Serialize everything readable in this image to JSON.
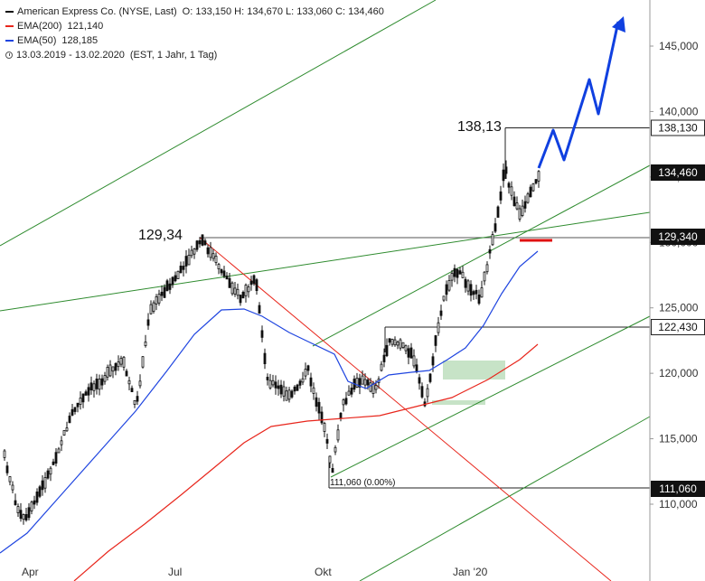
{
  "legend": {
    "title": "American Express Co. (NYSE, Last)",
    "ohlc": "O: 133,150  H: 134,670  L: 133,060  C: 134,460",
    "ema200_label": "EMA(200)",
    "ema200_value": "121,140",
    "ema50_label": "EMA(50)",
    "ema50_value": "128,185",
    "period": "13.03.2019 - 13.02.2020",
    "period_info": "(EST, 1 Jahr, 1 Tag)"
  },
  "colors": {
    "ema200": "#e8261c",
    "ema50": "#1f45e0",
    "green_lines": "#2e8b2e",
    "red_line": "#e8261c",
    "projection": "#1040e0",
    "support_mark": "#e01010",
    "zone_fill": "#b9dcb9",
    "candles": "#111111"
  },
  "chart_data": {
    "type": "candlestick",
    "x_axis_labels": [
      "Apr",
      "Jul",
      "Okt",
      "Jan '20"
    ],
    "y_ticks": [
      "145,000",
      "140,000",
      "135,000",
      "130,000",
      "125,000",
      "120,000",
      "115,000",
      "110,000"
    ],
    "y_range": [
      107.5,
      148.5
    ],
    "current_price_tag": "134,460",
    "price_tags": [
      "138,130",
      "129,340",
      "122,430",
      "111,060"
    ],
    "annotations": {
      "high_2020": "138,13",
      "high_jul": "129,34",
      "low_okt": "111,060 (0.00%)"
    },
    "ema200_end": 121.14,
    "ema50_end": 128.185,
    "last_ohlc": {
      "open": 133.15,
      "high": 134.67,
      "low": 133.06,
      "close": 134.46
    }
  }
}
